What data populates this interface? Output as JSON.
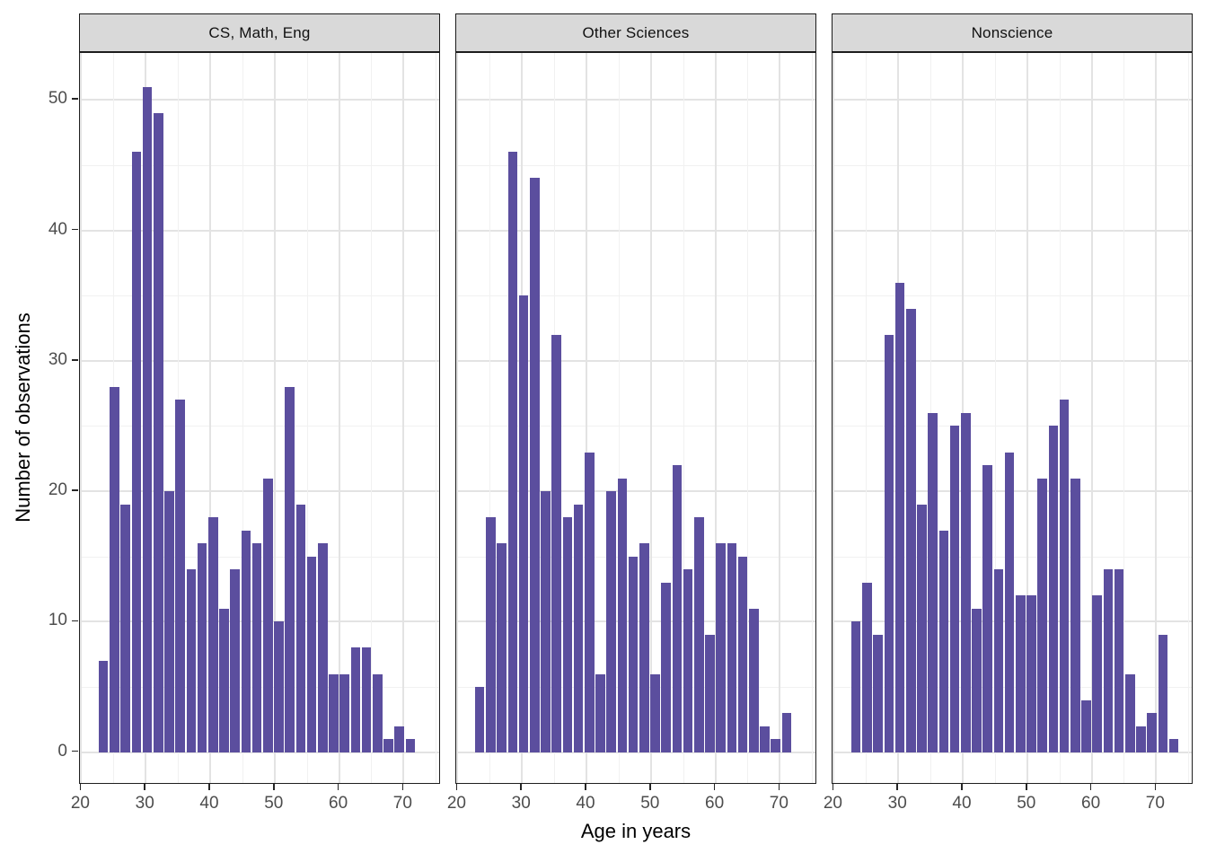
{
  "chart_data": {
    "type": "bar",
    "subtype": "faceted-histogram",
    "title": "",
    "xlabel": "Age in years",
    "ylabel": "Number of observations",
    "x_ticks": [
      20,
      30,
      40,
      50,
      60,
      70
    ],
    "y_ticks": [
      0,
      10,
      20,
      30,
      40,
      50
    ],
    "x_minor_gridlines": [
      25,
      35,
      45,
      55,
      65,
      75
    ],
    "y_minor_gridlines": [
      5,
      15,
      25,
      35,
      45
    ],
    "xlim": [
      19.8,
      75.8
    ],
    "ylim": [
      -2.5,
      53.6
    ],
    "bin_start_age": 22.6,
    "binwidth_years": 1.7,
    "grid": "on",
    "legend": "none",
    "facets": [
      {
        "label": "CS, Math, Eng",
        "n": 500,
        "counts": [
          7,
          28,
          19,
          46,
          51,
          49,
          20,
          27,
          14,
          16,
          18,
          11,
          14,
          17,
          16,
          21,
          10,
          28,
          19,
          15,
          16,
          6,
          6,
          8,
          8,
          6,
          1,
          2,
          1
        ]
      },
      {
        "label": "Other Sciences",
        "n": 500,
        "counts": [
          5,
          18,
          16,
          46,
          35,
          44,
          20,
          32,
          18,
          19,
          23,
          6,
          20,
          21,
          15,
          16,
          6,
          13,
          22,
          14,
          18,
          9,
          16,
          16,
          15,
          11,
          2,
          1,
          3
        ]
      },
      {
        "label": "Nonscience",
        "n": 500,
        "counts": [
          10,
          13,
          9,
          32,
          36,
          34,
          19,
          26,
          17,
          25,
          26,
          11,
          22,
          14,
          23,
          12,
          12,
          21,
          25,
          27,
          21,
          4,
          12,
          14,
          14,
          6,
          2,
          3,
          9,
          1
        ]
      }
    ],
    "colors": {
      "bar_fill": "#5B4E9E",
      "strip_fill": "#D9D9D9",
      "strip_border": "#1a1a1a",
      "panel_border": "#1f1f1f",
      "grid_major": "#e3e3e3",
      "grid_minor": "#f1f1f1",
      "tick_label": "#4d4d4d",
      "axis_title": "#000000"
    }
  }
}
